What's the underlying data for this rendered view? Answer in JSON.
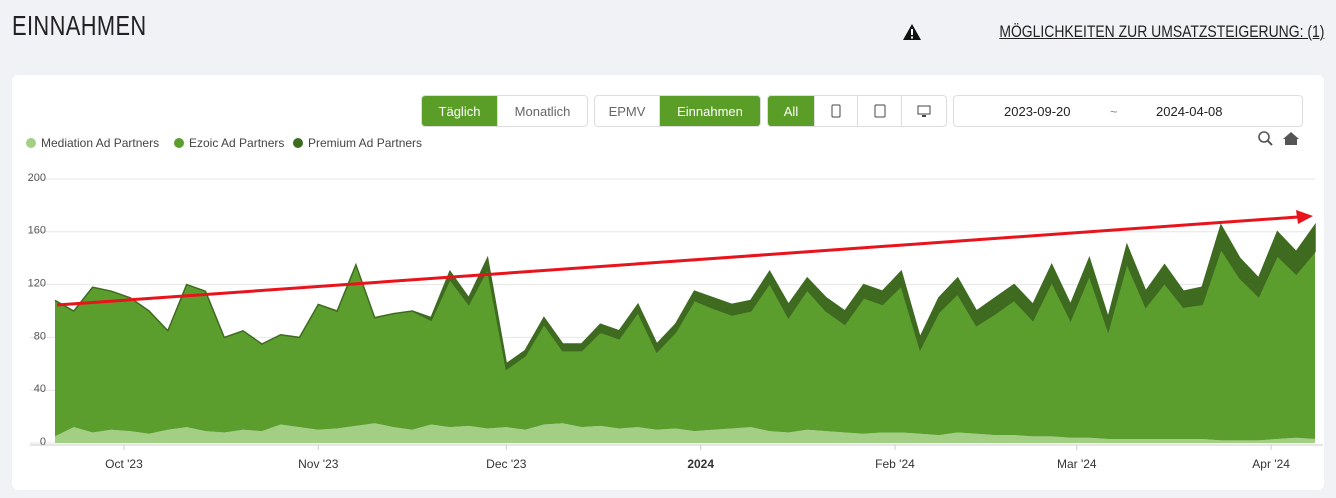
{
  "page": {
    "title": "EINNAHMEN",
    "notice": "MÖGLICHKEITEN ZUR UMSATZSTEIGERUNG: (1)",
    "buttons": {
      "daily": "Täglich",
      "monthly": "Monatlich",
      "epmv": "EPMV",
      "revenue": "Einnahmen",
      "all": "All"
    },
    "date_from": "2023-09-20",
    "date_sep": "~",
    "date_to": "2024-04-08"
  },
  "chart_data": {
    "type": "stacked_area",
    "x": [
      "2023-09-20",
      "2023-09-23",
      "2023-09-26",
      "2023-09-29",
      "2023-10-02",
      "2023-10-05",
      "2023-10-08",
      "2023-10-11",
      "2023-10-14",
      "2023-10-17",
      "2023-10-20",
      "2023-10-23",
      "2023-10-26",
      "2023-10-29",
      "2023-11-01",
      "2023-11-04",
      "2023-11-07",
      "2023-11-10",
      "2023-11-13",
      "2023-11-16",
      "2023-11-19",
      "2023-11-22",
      "2023-11-25",
      "2023-11-28",
      "2023-12-01",
      "2023-12-04",
      "2023-12-07",
      "2023-12-10",
      "2023-12-13",
      "2023-12-16",
      "2023-12-19",
      "2023-12-22",
      "2023-12-25",
      "2023-12-28",
      "2023-12-31",
      "2024-01-03",
      "2024-01-06",
      "2024-01-09",
      "2024-01-12",
      "2024-01-15",
      "2024-01-18",
      "2024-01-21",
      "2024-01-24",
      "2024-01-27",
      "2024-01-30",
      "2024-02-02",
      "2024-02-05",
      "2024-02-08",
      "2024-02-11",
      "2024-02-14",
      "2024-02-17",
      "2024-02-20",
      "2024-02-23",
      "2024-02-26",
      "2024-02-29",
      "2024-03-03",
      "2024-03-06",
      "2024-03-09",
      "2024-03-12",
      "2024-03-15",
      "2024-03-18",
      "2024-03-21",
      "2024-03-24",
      "2024-03-27",
      "2024-03-30",
      "2024-04-02",
      "2024-04-05",
      "2024-04-08"
    ],
    "series": [
      {
        "name": "Mediation Ad Partners",
        "color": "#a3cf85",
        "values": [
          5,
          12,
          8,
          10,
          9,
          7,
          10,
          12,
          9,
          8,
          10,
          9,
          14,
          12,
          10,
          11,
          13,
          15,
          12,
          10,
          14,
          12,
          13,
          11,
          12,
          10,
          14,
          15,
          12,
          13,
          11,
          12,
          10,
          11,
          9,
          10,
          11,
          12,
          9,
          8,
          10,
          9,
          8,
          7,
          8,
          8,
          7,
          6,
          8,
          7,
          6,
          6,
          5,
          5,
          4,
          4,
          3,
          3,
          3,
          3,
          3,
          3,
          2,
          2,
          2,
          3,
          4,
          3
        ]
      },
      {
        "name": "Ezoic Ad Partners",
        "color": "#5c9e2e",
        "values": [
          103,
          88,
          110,
          105,
          101,
          93,
          75,
          108,
          106,
          72,
          75,
          66,
          68,
          68,
          95,
          89,
          122,
          80,
          86,
          90,
          79,
          112,
          92,
          121,
          44,
          56,
          76,
          55,
          58,
          71,
          68,
          87,
          59,
          73,
          99,
          92,
          86,
          88,
          112,
          87,
          106,
          91,
          82,
          103,
          97,
          111,
          64,
          93,
          105,
          82,
          92,
          102,
          88,
          117,
          89,
          123,
          82,
          133,
          100,
          118,
          100,
          102,
          145,
          123,
          109,
          139,
          124,
          142
        ]
      },
      {
        "name": "Premium Ad Partners",
        "color": "#3e6b20",
        "values": [
          0,
          0,
          0,
          0,
          0,
          0,
          0,
          0,
          0,
          0,
          0,
          0,
          0,
          0,
          0,
          0,
          0,
          0,
          0,
          0,
          2,
          6,
          5,
          8,
          4,
          4,
          5,
          5,
          5,
          6,
          6,
          6,
          6,
          6,
          7,
          8,
          8,
          8,
          9,
          10,
          9,
          10,
          10,
          10,
          10,
          11,
          9,
          11,
          12,
          11,
          12,
          12,
          12,
          13,
          12,
          13,
          10,
          14,
          12,
          14,
          12,
          13,
          18,
          15,
          14,
          18,
          17,
          20
        ]
      }
    ],
    "xlim": [
      "2023-09-20",
      "2024-04-08"
    ],
    "xticks": [
      {
        "value": "2023-10-01",
        "label": "Oct '23"
      },
      {
        "value": "2023-11-01",
        "label": "Nov '23"
      },
      {
        "value": "2023-12-01",
        "label": "Dec '23"
      },
      {
        "value": "2024-01-01",
        "label": "2024"
      },
      {
        "value": "2024-02-01",
        "label": "Feb '24"
      },
      {
        "value": "2024-03-01",
        "label": "Mar '24"
      },
      {
        "value": "2024-04-01",
        "label": "Apr '24"
      }
    ],
    "ylim": [
      0,
      200
    ],
    "yticks": [
      0,
      40,
      80,
      120,
      160,
      200
    ],
    "grid": true
  }
}
